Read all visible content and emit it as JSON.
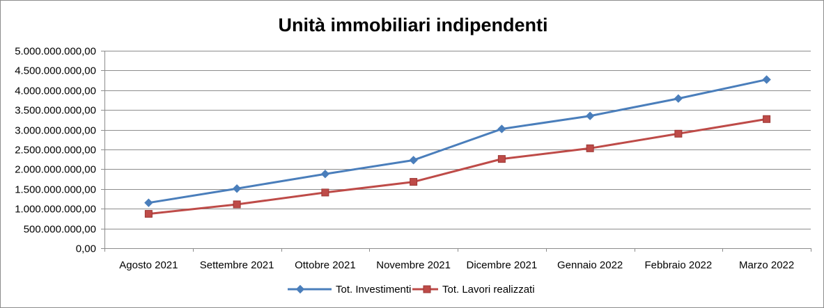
{
  "chart_data": {
    "type": "line",
    "title": "Unità immobiliari indipendenti",
    "xlabel": "",
    "ylabel": "",
    "categories": [
      "Agosto 2021",
      "Settembre 2021",
      "Ottobre 2021",
      "Novembre 2021",
      "Dicembre 2021",
      "Gennaio 2022",
      "Febbraio 2022",
      "Marzo 2022"
    ],
    "ylim": [
      0,
      5000000000
    ],
    "yticks": [
      0,
      500000000,
      1000000000,
      1500000000,
      2000000000,
      2500000000,
      3000000000,
      3500000000,
      4000000000,
      4500000000,
      5000000000
    ],
    "ytick_labels": [
      "0,00",
      "500.000.000,00",
      "1.000.000.000,00",
      "1.500.000.000,00",
      "2.000.000.000,00",
      "2.500.000.000,00",
      "3.000.000.000,00",
      "3.500.000.000,00",
      "4.000.000.000,00",
      "4.500.000.000,00",
      "5.000.000.000,00"
    ],
    "grid": true,
    "legend_position": "bottom",
    "series": [
      {
        "name": "Tot. Investimenti",
        "color": "#4a7ebb",
        "marker": "diamond",
        "values": [
          1150000000,
          1510000000,
          1880000000,
          2230000000,
          3020000000,
          3350000000,
          3790000000,
          4270000000
        ]
      },
      {
        "name": "Tot. Lavori realizzati",
        "color": "#be4b48",
        "marker": "square",
        "values": [
          870000000,
          1110000000,
          1410000000,
          1680000000,
          2260000000,
          2530000000,
          2900000000,
          3270000000
        ]
      }
    ]
  }
}
